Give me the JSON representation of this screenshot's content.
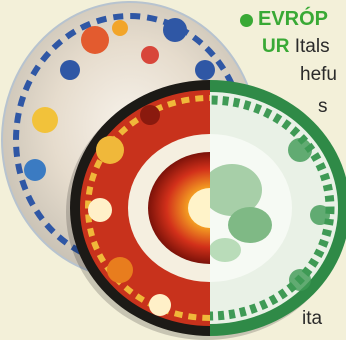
{
  "heading": {
    "line1": "EVRÓP",
    "line2_bold": "UR",
    "line2_rest": " Itals"
  },
  "body_lines": [
    "hefu",
    "s",
    "ita"
  ],
  "colors": {
    "accent_green": "#39a935",
    "page_bg": "#f3f0d9"
  },
  "icons": [
    "bullet-dot-icon"
  ]
}
